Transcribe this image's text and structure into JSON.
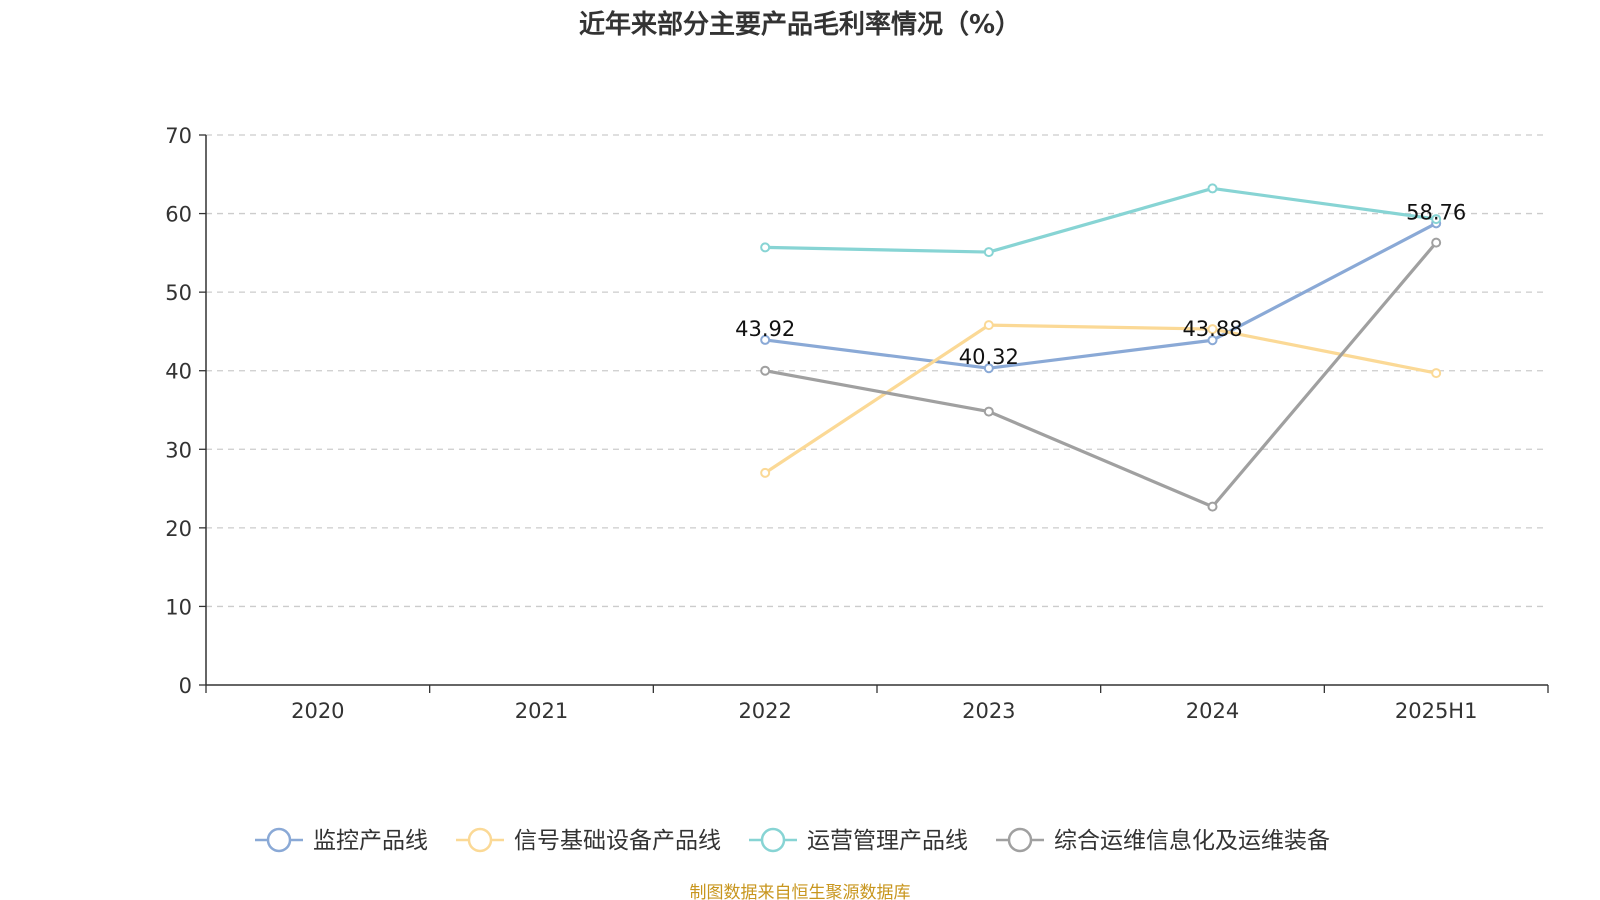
{
  "chart_data": {
    "type": "line",
    "title": "近年来部分主要产品毛利率情况（%）",
    "categories": [
      "2020",
      "2021",
      "2022",
      "2023",
      "2024",
      "2025H1"
    ],
    "ylim": [
      0,
      70
    ],
    "yticks": [
      0,
      10,
      20,
      30,
      40,
      50,
      60,
      70
    ],
    "grid": true,
    "legend_position": "bottom",
    "series": [
      {
        "name": "监控产品线",
        "color": "#8AA9D6",
        "values": [
          null,
          null,
          43.92,
          40.32,
          43.88,
          58.76
        ],
        "labels": [
          null,
          null,
          "43.92",
          "40.32",
          "43.88",
          "58.76"
        ]
      },
      {
        "name": "信号基础设备产品线",
        "color": "#FBD996",
        "values": [
          null,
          null,
          27.0,
          45.8,
          45.3,
          39.7
        ],
        "labels": [
          null,
          null,
          null,
          null,
          null,
          null
        ]
      },
      {
        "name": "运营管理产品线",
        "color": "#87D4D4",
        "values": [
          null,
          null,
          55.7,
          55.1,
          63.2,
          59.3
        ],
        "labels": [
          null,
          null,
          null,
          null,
          null,
          null
        ]
      },
      {
        "name": "综合运维信息化及运维装备",
        "color": "#A0A0A0",
        "values": [
          null,
          null,
          40.0,
          34.8,
          22.7,
          56.3
        ],
        "labels": [
          null,
          null,
          null,
          null,
          null,
          null
        ]
      }
    ]
  },
  "source": {
    "text": "制图数据来自恒生聚源数据库",
    "color": "#C8961E"
  }
}
